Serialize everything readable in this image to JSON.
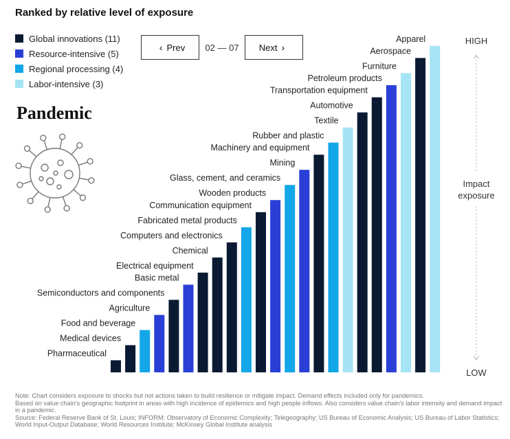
{
  "title": "Ranked by relative level of exposure",
  "scenario": "Pandemic",
  "nav": {
    "prev_label": "Prev",
    "next_label": "Next",
    "page_indicator": "02 — 07"
  },
  "legend": [
    {
      "label": "Global innovations (11)",
      "color": "#0b1a33"
    },
    {
      "label": "Resource-intensive (5)",
      "color": "#2a3fd6"
    },
    {
      "label": "Regional processing (4)",
      "color": "#13a6e8"
    },
    {
      "label": "Labor-intensive (3)",
      "color": "#a6e3f5"
    }
  ],
  "axis": {
    "high": "HIGH",
    "low": "LOW",
    "label_line1": "Impact",
    "label_line2": "exposure"
  },
  "colors": {
    "Global innovations": "#0b1a33",
    "Resource-intensive": "#2a3fd6",
    "Regional processing": "#13a6e8",
    "Labor-intensive": "#a6e3f5"
  },
  "chart_data": {
    "type": "bar",
    "title": "Ranked by relative level of exposure",
    "ylabel": "Impact exposure",
    "ylim_labels": [
      "LOW",
      "HIGH"
    ],
    "categories": [
      "Pharmaceutical",
      "Medical devices",
      "Food and beverage",
      "Agriculture",
      "Semiconductors and components",
      "Basic metal",
      "Electrical equipment",
      "Chemical",
      "Computers and electronics",
      "Fabricated metal products",
      "Communication equipment",
      "Wooden products",
      "Glass, cement, and ceramics",
      "Mining",
      "Machinery and equipment",
      "Rubber and plastic",
      "Textile",
      "Automotive",
      "Transportation equipment",
      "Petroleum products",
      "Furniture",
      "Aerospace",
      "Apparel"
    ],
    "groups": [
      "Global innovations",
      "Global innovations",
      "Regional processing",
      "Resource-intensive",
      "Global innovations",
      "Resource-intensive",
      "Global innovations",
      "Global innovations",
      "Global innovations",
      "Regional processing",
      "Global innovations",
      "Resource-intensive",
      "Regional processing",
      "Resource-intensive",
      "Global innovations",
      "Regional processing",
      "Labor-intensive",
      "Global innovations",
      "Global innovations",
      "Resource-intensive",
      "Labor-intensive",
      "Global innovations",
      "Labor-intensive"
    ],
    "values": [
      4,
      9,
      14,
      19,
      24,
      29,
      33,
      38,
      43,
      48,
      53,
      57,
      62,
      67,
      72,
      76,
      81,
      86,
      91,
      95,
      99,
      104,
      108
    ]
  },
  "notes": [
    "Note: Chart considers exposure to shocks but not actions taken to build resilience or mitigate impact. Demand effects included only for pandemics.",
    "Based on value chain's geographic footprint in areas with high incidence of epidemics and high people inflows. Also considers value chain's labor intensity and demand impact in a pandemic.",
    "Source: Federal Reserve Bank of St. Louis; INFORM; Observatory of Economic Complexity; Telegeography; US Bureau of Economic Analysis; US Bureau of Labor Statistics; World Input-Output Database; World Resources Institute; McKinsey Global Institute analysis"
  ]
}
